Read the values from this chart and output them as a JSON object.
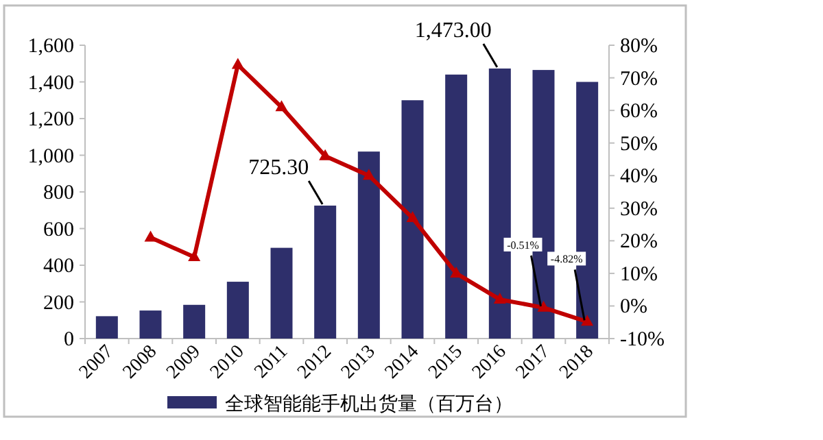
{
  "chart_data": {
    "type": "bar",
    "categories": [
      "2007",
      "2008",
      "2009",
      "2010",
      "2011",
      "2012",
      "2013",
      "2014",
      "2015",
      "2016",
      "2017",
      "2018"
    ],
    "series": [
      {
        "name": "全球智能能手机出货量（百万台）",
        "color": "#2e2f6b",
        "values": [
          122,
          153,
          184,
          310,
          495,
          725.3,
          1020,
          1300,
          1440,
          1473,
          1465,
          1400
        ],
        "value_labels": [
          null,
          null,
          null,
          null,
          null,
          "725.30",
          null,
          null,
          null,
          "1,473.00",
          null,
          null
        ]
      },
      {
        "type": "line",
        "axis": "y2",
        "color": "#c00000",
        "values": [
          null,
          21,
          15,
          74,
          61,
          46,
          40,
          27,
          10,
          2,
          -0.51,
          -4.82
        ],
        "value_labels": [
          null,
          null,
          null,
          null,
          null,
          null,
          null,
          null,
          null,
          null,
          "-0.51%",
          "-4.82%"
        ]
      }
    ],
    "ylim": [
      0,
      1600
    ],
    "yticks": [
      0,
      200,
      400,
      600,
      800,
      {
        "value": 1000,
        "label": "1,000"
      },
      {
        "value": 1200,
        "label": "1,200"
      },
      {
        "value": 1400,
        "label": "1,400"
      },
      {
        "value": 1600,
        "label": "1,600"
      }
    ],
    "y2lim": [
      -10,
      80
    ],
    "y2ticks": [
      {
        "value": -10,
        "label": "-10%"
      },
      {
        "value": 0,
        "label": "0%"
      },
      {
        "value": 10,
        "label": "10%"
      },
      {
        "value": 20,
        "label": "20%"
      },
      {
        "value": 30,
        "label": "30%"
      },
      {
        "value": 40,
        "label": "40%"
      },
      {
        "value": 50,
        "label": "50%"
      },
      {
        "value": 60,
        "label": "60%"
      },
      {
        "value": 70,
        "label": "70%"
      },
      {
        "value": 80,
        "label": "80%"
      }
    ],
    "legend": "bottom",
    "marker": "triangle"
  }
}
